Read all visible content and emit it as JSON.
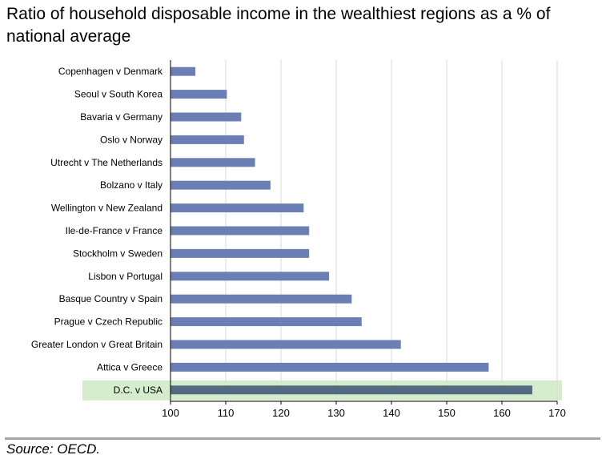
{
  "title": "Ratio of household disposable income in the wealthiest regions as a % of national average",
  "source": "Source: OECD.",
  "colors": {
    "bar": "#6b7fb5",
    "highlight_bar": "#536a80",
    "highlight_band": "#d6edcd",
    "grid": "#d9d9d9",
    "axis": "#000000"
  },
  "chart_data": {
    "type": "bar",
    "orientation": "horizontal",
    "title": "Ratio of household disposable income in the wealthiest regions as a % of national average",
    "categories": [
      "Copenhagen v Denmark",
      "Seoul v South Korea",
      "Bavaria v Germany",
      "Oslo v Norway",
      "Utrecht v The Netherlands",
      "Bolzano v Italy",
      "Wellington v New Zealand",
      "Ile-de-France v France",
      "Stockholm v Sweden",
      "Lisbon v Portugal",
      "Basque Country v Spain",
      "Prague v Czech Republic",
      "Greater London v Great Britain",
      "Attica v Greece",
      "D.C. v USA"
    ],
    "values": [
      104.5,
      110.2,
      112.8,
      113.3,
      115.3,
      118.1,
      124.1,
      125.1,
      125.1,
      128.7,
      132.8,
      134.6,
      141.7,
      157.6,
      165.5
    ],
    "highlight": "D.C. v USA",
    "xlim": [
      100,
      170
    ],
    "xticks": [
      "100",
      "110",
      "120",
      "130",
      "140",
      "150",
      "160",
      "170"
    ],
    "xlabel": "",
    "ylabel": "",
    "grid": "vertical",
    "legend": "none"
  }
}
